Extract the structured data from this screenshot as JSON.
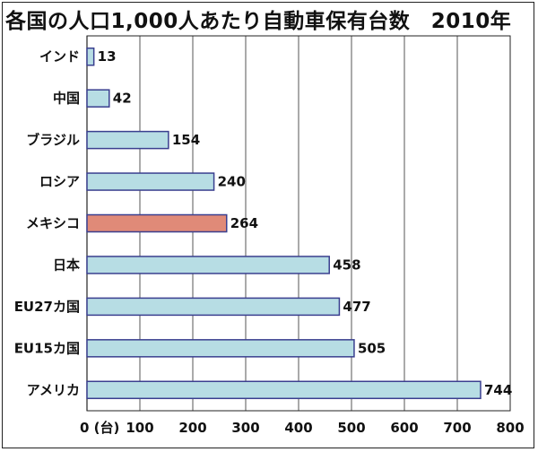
{
  "chart_data": {
    "type": "bar",
    "orientation": "horizontal",
    "title": "各国の人口1,000人あたり自動車保有台数　2010年",
    "categories": [
      "インド",
      "中国",
      "ブラジル",
      "ロシア",
      "メキシコ",
      "日本",
      "EU27カ国",
      "EU15カ国",
      "アメリカ"
    ],
    "values": [
      13,
      42,
      154,
      240,
      264,
      458,
      477,
      505,
      744
    ],
    "value_labels": [
      "13",
      "42",
      "154",
      "240",
      "264",
      "458",
      "477",
      "505",
      "744"
    ],
    "highlight": "メキシコ",
    "xlim": [
      0,
      800
    ],
    "xticks": [
      0,
      100,
      200,
      300,
      400,
      500,
      600,
      700,
      800
    ],
    "xtick_labels": [
      "0 (台)",
      "100",
      "200",
      "300",
      "400",
      "500",
      "600",
      "700",
      "800"
    ],
    "grid": true,
    "colors": {
      "bar": "#b7dde4",
      "highlight": "#e08a78",
      "edge": "#3a3f8f",
      "grid": "#555555"
    }
  }
}
